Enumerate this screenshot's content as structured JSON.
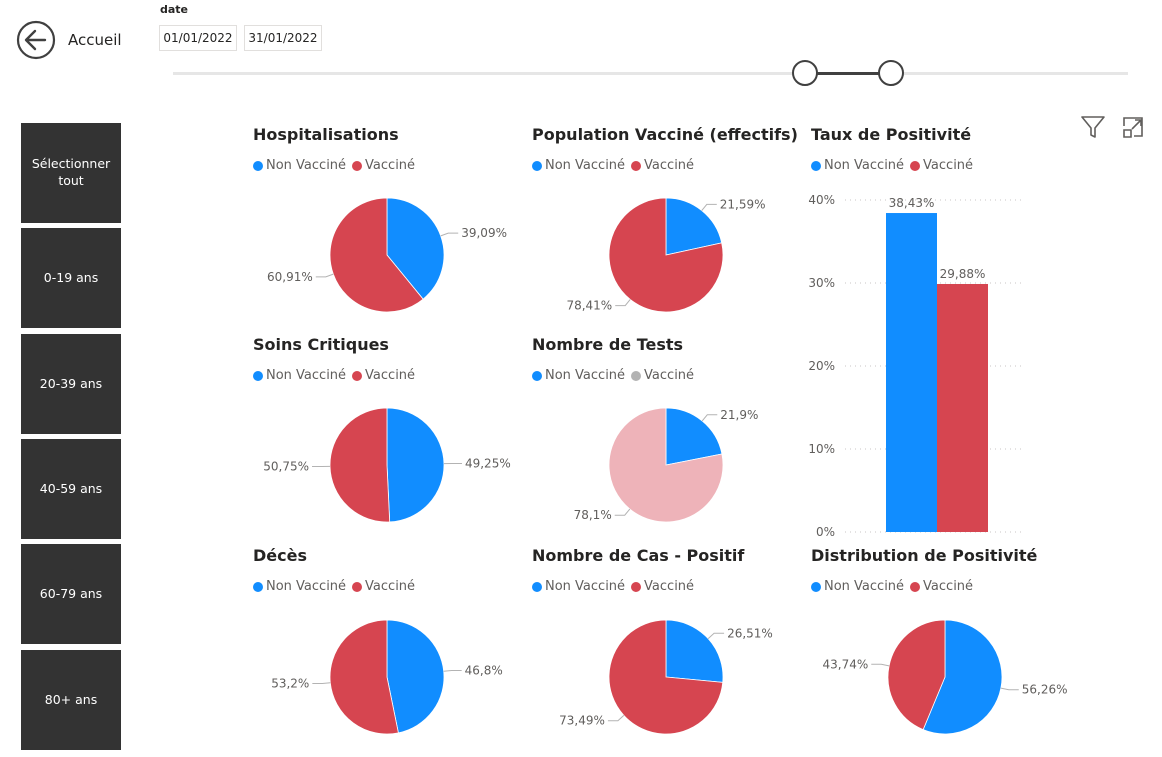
{
  "header": {
    "home_label": "Accueil",
    "date_label": "date",
    "date_start": "01/01/2022",
    "date_end": "31/01/2022"
  },
  "slicer": {
    "items": [
      {
        "label": "Sélectionner tout"
      },
      {
        "label": "0-19 ans"
      },
      {
        "label": "20-39 ans"
      },
      {
        "label": "40-59 ans"
      },
      {
        "label": "60-79 ans"
      },
      {
        "label": "80+ ans"
      }
    ]
  },
  "colors": {
    "non_vaccine": "#118dff",
    "vaccine": "#d64550",
    "light_pink": "#eeb3b9",
    "grey": "#b3b3b3"
  },
  "legend": {
    "non_vaccine": "Non Vacciné",
    "vaccine": "Vacciné"
  },
  "chart_data": [
    {
      "type": "pie",
      "title": "Hospitalisations",
      "series": [
        {
          "name": "Non Vacciné",
          "value": 39.09,
          "label": "39,09%"
        },
        {
          "name": "Vacciné",
          "value": 60.91,
          "label": "60,91%"
        }
      ]
    },
    {
      "type": "pie",
      "title": "Population Vacciné (effectifs)",
      "series": [
        {
          "name": "Non Vacciné",
          "value": 21.59,
          "label": "21,59%"
        },
        {
          "name": "Vacciné",
          "value": 78.41,
          "label": "78,41%"
        }
      ]
    },
    {
      "type": "bar",
      "title": "Taux de Positivité",
      "categories": [
        "Non Vacciné",
        "Vacciné"
      ],
      "values": [
        38.43,
        29.88
      ],
      "value_labels": [
        "38,43%",
        "29,88%"
      ],
      "yticks": [
        "0%",
        "10%",
        "20%",
        "30%",
        "40%"
      ],
      "ylim": [
        0,
        40
      ]
    },
    {
      "type": "pie",
      "title": "Soins Critiques",
      "series": [
        {
          "name": "Non Vacciné",
          "value": 49.25,
          "label": "49,25%"
        },
        {
          "name": "Vacciné",
          "value": 50.75,
          "label": "50,75%"
        }
      ]
    },
    {
      "type": "pie",
      "title": "Nombre de Tests",
      "series": [
        {
          "name": "Non Vacciné",
          "value": 21.9,
          "label": "21,9%"
        },
        {
          "name": "Vacciné",
          "value": 78.1,
          "label": "78,1%"
        }
      ]
    },
    {
      "type": "pie",
      "title": "Décès",
      "series": [
        {
          "name": "Non Vacciné",
          "value": 46.8,
          "label": "46,8%"
        },
        {
          "name": "Vacciné",
          "value": 53.2,
          "label": "53,2%"
        }
      ]
    },
    {
      "type": "pie",
      "title": "Nombre de Cas - Positif",
      "series": [
        {
          "name": "Non Vacciné",
          "value": 26.51,
          "label": "26,51%"
        },
        {
          "name": "Vacciné",
          "value": 73.49,
          "label": "73,49%"
        }
      ]
    },
    {
      "type": "pie",
      "title": "Distribution de Positivité",
      "series": [
        {
          "name": "Non Vacciné",
          "value": 56.26,
          "label": "56,26%"
        },
        {
          "name": "Vacciné",
          "value": 43.74,
          "label": "43,74%"
        }
      ]
    }
  ]
}
